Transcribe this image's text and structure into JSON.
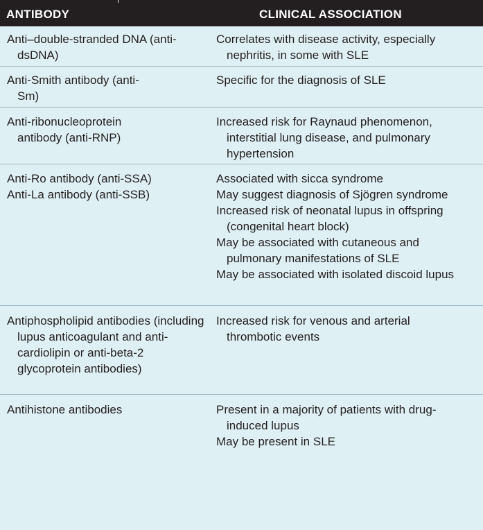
{
  "header": {
    "col1": "ANTIBODY",
    "col2": "CLINICAL ASSOCIATION"
  },
  "rows": [
    {
      "antibodies": [
        "Anti–double-stranded DNA (anti-dsDNA)"
      ],
      "associations": [
        "Correlates with disease activity, especially nephritis, in some with SLE"
      ]
    },
    {
      "antibodies": [
        "Anti-Smith antibody (anti-Sm)"
      ],
      "associations": [
        "Specific for the diagnosis of SLE"
      ]
    },
    {
      "antibodies": [
        "Anti-ribonucleoprotein antibody (anti-RNP)"
      ],
      "associations": [
        "Increased risk for Raynaud phenomenon, interstitial lung disease, and pulmonary hypertension"
      ]
    },
    {
      "antibodies": [
        "Anti-Ro antibody (anti-SSA)",
        "Anti-La antibody (anti-SSB)"
      ],
      "associations": [
        "Associated with sicca syndrome",
        "May suggest diagnosis of Sjögren syndrome",
        "Increased risk of neonatal lupus in offspring (congenital heart block)",
        "May be associated with cutaneous and pulmonary manifestations of SLE",
        "May be associated with isolated discoid lupus"
      ]
    },
    {
      "antibodies": [
        "Antiphospholipid antibodies (including lupus anticoagulant and anti-cardiolipin or anti-beta-2 glycoprotein antibodies)"
      ],
      "associations": [
        "Increased risk for venous and arterial thrombotic events"
      ]
    },
    {
      "antibodies": [
        "Antihistone antibodies"
      ],
      "associations": [
        "Present in a majority of patients with drug-induced lupus",
        "May be present in SLE"
      ]
    }
  ]
}
